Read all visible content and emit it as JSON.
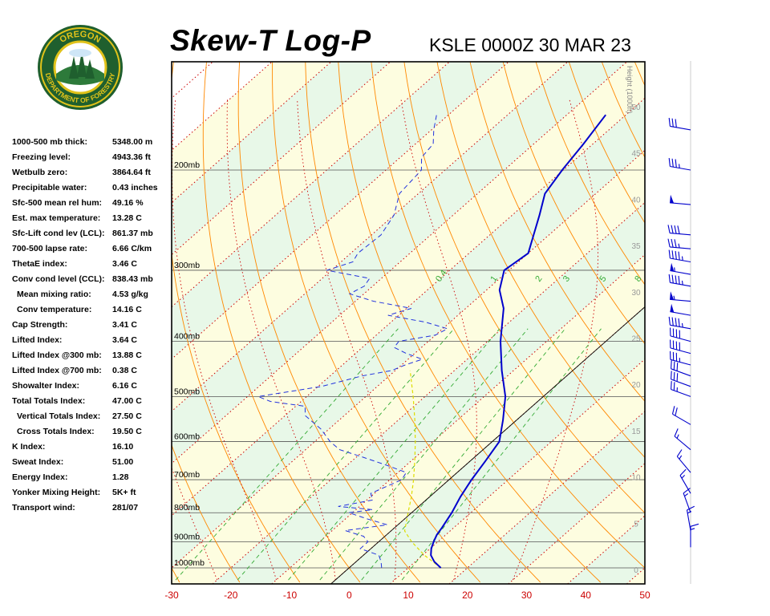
{
  "header": {
    "title": "Skew-T Log-P",
    "station_time": "KSLE 0000Z 30 MAR 23"
  },
  "logo": {
    "top_text": "OREGON",
    "bottom_text": "DEPARTMENT OF FORESTRY"
  },
  "stats": [
    {
      "label": "1000-500 mb thick:",
      "value": "5348.00 m",
      "indent": false
    },
    {
      "label": "Freezing level:",
      "value": "4943.36 ft",
      "indent": false
    },
    {
      "label": "Wetbulb zero:",
      "value": "3864.64 ft",
      "indent": false
    },
    {
      "label": "Precipitable water:",
      "value": "0.43 inches",
      "indent": false
    },
    {
      "label": "Sfc-500 mean rel hum:",
      "value": "49.16 %",
      "indent": false
    },
    {
      "label": "Est. max temperature:",
      "value": "13.28 C",
      "indent": false
    },
    {
      "label": "Sfc-Lift cond lev (LCL):",
      "value": "861.37 mb",
      "indent": false
    },
    {
      "label": "700-500 lapse rate:",
      "value": "6.66 C/km",
      "indent": false
    },
    {
      "label": "ThetaE index:",
      "value": "3.46 C",
      "indent": false
    },
    {
      "label": "Conv cond level (CCL):",
      "value": "838.43 mb",
      "indent": false
    },
    {
      "label": "Mean mixing ratio:",
      "value": "4.53 g/kg",
      "indent": true
    },
    {
      "label": "Conv temperature:",
      "value": "14.16 C",
      "indent": true
    },
    {
      "label": "Cap Strength:",
      "value": "3.41 C",
      "indent": false
    },
    {
      "label": "Lifted Index:",
      "value": "3.64 C",
      "indent": false
    },
    {
      "label": "Lifted Index @300 mb:",
      "value": "13.88 C",
      "indent": false
    },
    {
      "label": "Lifted Index @700 mb:",
      "value": "0.38 C",
      "indent": false
    },
    {
      "label": "Showalter Index:",
      "value": "6.16 C",
      "indent": false
    },
    {
      "label": "Total Totals Index:",
      "value": "47.00 C",
      "indent": false
    },
    {
      "label": "Vertical Totals Index:",
      "value": "27.50 C",
      "indent": true
    },
    {
      "label": "Cross Totals Index:",
      "value": "19.50 C",
      "indent": true
    },
    {
      "label": "K Index:",
      "value": "16.10",
      "indent": false
    },
    {
      "label": "Sweat Index:",
      "value": "51.00",
      "indent": false
    },
    {
      "label": "Energy Index:",
      "value": "1.28",
      "indent": false
    },
    {
      "label": "Yonker Mixing Height:",
      "value": "5K+ ft",
      "indent": false
    },
    {
      "label": "Transport wind:",
      "value": "281/07",
      "indent": false
    }
  ],
  "chart_data": {
    "type": "line",
    "subtype": "skew-t log-p",
    "xlim": [
      -30,
      50
    ],
    "x_ticks": [
      "-30",
      "-20",
      "-10",
      "0",
      "10",
      "20",
      "30",
      "40",
      "50"
    ],
    "pressure_labels": [
      "200mb",
      "300mb",
      "400mb",
      "500mb",
      "600mb",
      "700mb",
      "800mb",
      "900mb",
      "1000mb"
    ],
    "pressure_values": [
      200,
      300,
      400,
      500,
      600,
      700,
      800,
      900,
      1000
    ],
    "height_title": "Height (1000ft)",
    "height_ticks": [
      "0",
      "5",
      "10",
      "15",
      "20",
      "25",
      "30",
      "35",
      "40",
      "45",
      "50"
    ],
    "mixing_ratio_labels": [
      "0.4",
      "1",
      "2",
      "3",
      "5",
      "8"
    ],
    "colors": {
      "temperature": "#0000cc",
      "dewpoint": "#2233dd",
      "parcel": "#dddd00",
      "isotherm_red": "#cc0000",
      "dry_adiabat": "#ff8800",
      "moist_adiabat": "#cc0000",
      "mixing_ratio": "#33aa33",
      "isobar": "#555555",
      "band_green": "#e8f8e8",
      "band_yellow": "#fdfde0",
      "barb": "#0000cc"
    },
    "temperature_profile": [
      [
        1000,
        15.5
      ],
      [
        975,
        13.2
      ],
      [
        950,
        11.4
      ],
      [
        925,
        10.2
      ],
      [
        900,
        9.3
      ],
      [
        875,
        8.5
      ],
      [
        850,
        8.0
      ],
      [
        800,
        6.8
      ],
      [
        750,
        5.2
      ],
      [
        700,
        3.8
      ],
      [
        650,
        2.6
      ],
      [
        600,
        1.2
      ],
      [
        550,
        -2.3
      ],
      [
        500,
        -6.4
      ],
      [
        450,
        -12.0
      ],
      [
        400,
        -17.8
      ],
      [
        350,
        -23.6
      ],
      [
        325,
        -27.8
      ],
      [
        300,
        -30.8
      ],
      [
        280,
        -30.0
      ],
      [
        260,
        -32.6
      ],
      [
        240,
        -35.4
      ],
      [
        220,
        -38.6
      ],
      [
        200,
        -40.2
      ],
      [
        180,
        -41.6
      ],
      [
        160,
        -43.4
      ]
    ],
    "dewpoint_profile": [
      [
        1000,
        5.5
      ],
      [
        975,
        4.2
      ],
      [
        950,
        2.6
      ],
      [
        925,
        -1.8
      ],
      [
        900,
        -1.8
      ],
      [
        880,
        -3.6
      ],
      [
        860,
        -7.8
      ],
      [
        840,
        -1.8
      ],
      [
        820,
        -6.4
      ],
      [
        800,
        -10.6
      ],
      [
        790,
        -7.2
      ],
      [
        780,
        -13.6
      ],
      [
        760,
        -9.0
      ],
      [
        740,
        -10.6
      ],
      [
        700,
        -8.0
      ],
      [
        680,
        -8.6
      ],
      [
        660,
        -13.4
      ],
      [
        640,
        -18.6
      ],
      [
        620,
        -24.2
      ],
      [
        600,
        -27.4
      ],
      [
        570,
        -31.4
      ],
      [
        540,
        -36.6
      ],
      [
        520,
        -38.4
      ],
      [
        510,
        -45.2
      ],
      [
        500,
        -48.2
      ],
      [
        480,
        -39.4
      ],
      [
        460,
        -34.6
      ],
      [
        450,
        -30.6
      ],
      [
        440,
        -29.4
      ],
      [
        430,
        -27.6
      ],
      [
        420,
        -31.4
      ],
      [
        410,
        -34.6
      ],
      [
        400,
        -35.0
      ],
      [
        390,
        -30.0
      ],
      [
        380,
        -29.2
      ],
      [
        370,
        -34.2
      ],
      [
        360,
        -41.8
      ],
      [
        350,
        -39.2
      ],
      [
        340,
        -47.0
      ],
      [
        330,
        -52.4
      ],
      [
        320,
        -51.4
      ],
      [
        310,
        -52.0
      ],
      [
        300,
        -60.8
      ],
      [
        290,
        -58.0
      ],
      [
        280,
        -58.8
      ],
      [
        260,
        -58.4
      ],
      [
        240,
        -60.0
      ],
      [
        220,
        -63.2
      ],
      [
        200,
        -64.0
      ],
      [
        190,
        -66.4
      ],
      [
        180,
        -67.0
      ],
      [
        170,
        -69.6
      ],
      [
        160,
        -72.0
      ]
    ],
    "parcel_profile": [
      [
        1000,
        15.5
      ],
      [
        950,
        10.3
      ],
      [
        900,
        5.6
      ],
      [
        861,
        2.3
      ],
      [
        800,
        -0.6
      ],
      [
        750,
        -3.1
      ],
      [
        700,
        -6.0
      ],
      [
        650,
        -9.3
      ],
      [
        600,
        -13.0
      ],
      [
        550,
        -17.2
      ],
      [
        500,
        -22.0
      ],
      [
        450,
        -27.5
      ]
    ],
    "wind_barbs": [
      {
        "pressure": 170,
        "dir": 280,
        "speed": 30
      },
      {
        "pressure": 200,
        "dir": 280,
        "speed": 35
      },
      {
        "pressure": 230,
        "dir": 275,
        "speed": 50
      },
      {
        "pressure": 260,
        "dir": 275,
        "speed": 40
      },
      {
        "pressure": 275,
        "dir": 275,
        "speed": 35
      },
      {
        "pressure": 290,
        "dir": 280,
        "speed": 45
      },
      {
        "pressure": 305,
        "dir": 280,
        "speed": 55
      },
      {
        "pressure": 320,
        "dir": 280,
        "speed": 45
      },
      {
        "pressure": 340,
        "dir": 275,
        "speed": 55
      },
      {
        "pressure": 360,
        "dir": 280,
        "speed": 50
      },
      {
        "pressure": 380,
        "dir": 280,
        "speed": 45
      },
      {
        "pressure": 400,
        "dir": 285,
        "speed": 40
      },
      {
        "pressure": 420,
        "dir": 285,
        "speed": 40
      },
      {
        "pressure": 440,
        "dir": 285,
        "speed": 35
      },
      {
        "pressure": 460,
        "dir": 290,
        "speed": 30
      },
      {
        "pressure": 480,
        "dir": 290,
        "speed": 30
      },
      {
        "pressure": 500,
        "dir": 290,
        "speed": 25
      },
      {
        "pressure": 560,
        "dir": 300,
        "speed": 20
      },
      {
        "pressure": 620,
        "dir": 310,
        "speed": 15
      },
      {
        "pressure": 680,
        "dir": 320,
        "speed": 15
      },
      {
        "pressure": 740,
        "dir": 330,
        "speed": 15
      },
      {
        "pressure": 800,
        "dir": 340,
        "speed": 15
      },
      {
        "pressure": 860,
        "dir": 350,
        "speed": 15
      },
      {
        "pressure": 920,
        "dir": 0,
        "speed": 15
      }
    ]
  }
}
